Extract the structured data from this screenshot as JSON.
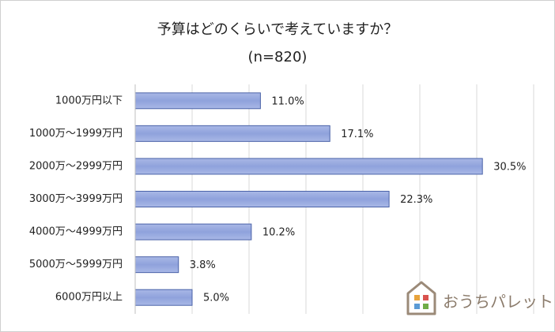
{
  "chart_data": {
    "type": "barh",
    "title": "予算はどのくらいで考えていますか？",
    "subtitle": "(n=820)",
    "categories": [
      "1000万円以下",
      "1000万～1999万円",
      "2000万～2999万円",
      "3000万～3999万円",
      "4000万～4999万円",
      "5000万～5999万円",
      "6000万円以上"
    ],
    "values": [
      11.0,
      17.1,
      30.5,
      22.3,
      10.2,
      3.8,
      5.0
    ],
    "value_labels": [
      "11.0%",
      "17.1%",
      "30.5%",
      "22.3%",
      "10.2%",
      "3.8%",
      "5.0%"
    ],
    "color": "#8fa2dc",
    "xlim": [
      0,
      35
    ],
    "xticks": [
      0,
      5,
      10,
      15,
      20,
      25,
      30,
      35
    ],
    "grid": true,
    "watermark": "おうちパレット"
  }
}
